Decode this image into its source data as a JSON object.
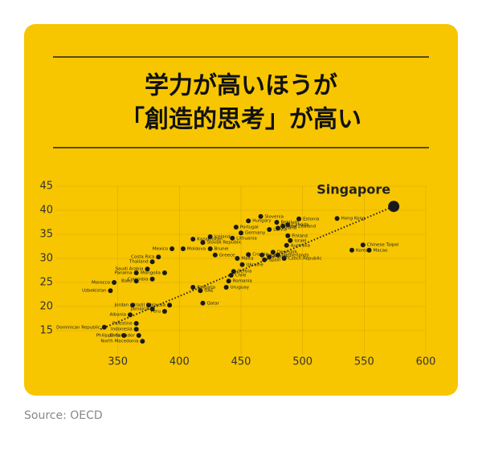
{
  "chart_data": {
    "type": "scatter",
    "title": [
      "学力が高いほうが",
      "「創造的思考」が高い"
    ],
    "source": "Source: OECD",
    "highlight": "Singapore",
    "color": "#1a1a1a",
    "labels": [
      "Singapore",
      "Hong Kong",
      "Estonia",
      "Canada",
      "New Zealand",
      "Belgium",
      "Latvia",
      "Poland",
      "Slovenia",
      "Hungary",
      "Germany",
      "Portugal",
      "Lithuania",
      "Australia",
      "Israel",
      "Finland",
      "Czech Republic",
      "Denmark",
      "Netherlands",
      "France",
      "Spain",
      "Italy",
      "Croatia",
      "Malta",
      "Ukraine",
      "Serbia",
      "Chile",
      "Romania",
      "Uruguay",
      "Iceland",
      "Slovak Republic",
      "Brunei",
      "Greece",
      "Kazakhstan",
      "Moldova",
      "Mexico",
      "Costa Rica",
      "Thailand",
      "Saudi Arabia",
      "Panama",
      "Mongolia",
      "Colombia",
      "Baku",
      "Morocco",
      "Uzbekistan",
      "Jordan",
      "Brazil",
      "Bulgaria",
      "UAE",
      "Qatar",
      "Albania",
      "Jamaica",
      "Peru",
      "Malaysia",
      "Indonesia",
      "Palestine",
      "El Salvador",
      "Philippines",
      "North Macedonia",
      "Dominican Republic",
      "Chinese Taipei",
      "Macao",
      "Korea"
    ],
    "x": [
      574,
      528,
      497,
      488,
      484,
      479,
      473,
      480,
      466,
      456,
      450,
      446,
      443,
      487,
      490,
      488,
      485,
      476,
      480,
      473,
      469,
      467,
      456,
      447,
      451,
      444,
      442,
      440,
      438,
      425,
      419,
      425,
      429,
      411,
      403,
      394,
      383,
      378,
      374,
      365,
      388,
      378,
      365,
      347,
      344,
      362,
      375,
      411,
      417,
      419,
      360,
      378,
      388,
      392,
      365,
      365,
      367,
      355,
      370,
      339,
      549,
      554,
      540
    ],
    "values": [
      40.8,
      38.3,
      38.2,
      37,
      36.7,
      37.5,
      36,
      36.3,
      38.7,
      37.8,
      35.3,
      36.5,
      34.2,
      32.7,
      33.7,
      34.7,
      30,
      31.3,
      30.7,
      30.3,
      29.7,
      30.7,
      30.8,
      30,
      28.7,
      27.3,
      26.5,
      25.3,
      24,
      34.5,
      33.3,
      32,
      30.7,
      34,
      32,
      32,
      30.3,
      29.3,
      27.8,
      27,
      27,
      25.7,
      25.3,
      25,
      23.3,
      20.3,
      20.3,
      24,
      23.3,
      20.7,
      18.3,
      19.5,
      19,
      20.3,
      15.3,
      16.5,
      14,
      14,
      12.8,
      15.7,
      32.8,
      31.7,
      31.7
    ],
    "trendline": {
      "x": [
        336,
        574
      ],
      "values": [
        15.3,
        40.8
      ]
    },
    "xlim": [
      300,
      600
    ],
    "xticks": [
      350,
      400,
      450,
      500,
      550,
      600
    ],
    "ylim": [
      10,
      45
    ],
    "yticks": [
      15,
      20,
      25,
      30,
      35,
      40,
      45
    ],
    "grid": true
  }
}
